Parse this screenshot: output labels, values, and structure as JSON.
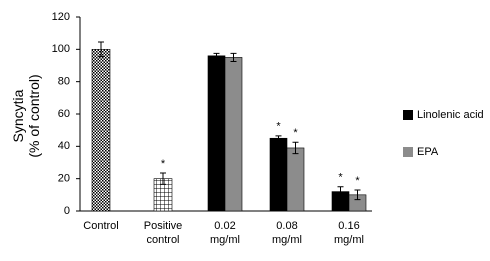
{
  "chart_data": {
    "type": "bar",
    "ylabel": "Syncytia\n(% of control)",
    "categories": [
      "Control",
      "Positive\ncontrol",
      "0.02\nmg/ml",
      "0.08\nmg/ml",
      "0.16\nmg/ml"
    ],
    "single_bars": {
      "values": [
        100,
        20,
        null,
        null,
        null
      ],
      "errors": [
        4.5,
        3.5,
        null,
        null,
        null
      ],
      "significance": [
        null,
        "*",
        null,
        null,
        null
      ]
    },
    "series": [
      {
        "name": "Linolenic acid",
        "color": "#000000",
        "values": [
          null,
          null,
          96,
          45,
          12
        ],
        "errors": [
          null,
          null,
          1.5,
          1.5,
          3
        ],
        "significance": [
          null,
          null,
          null,
          "*",
          "*"
        ]
      },
      {
        "name": "EPA",
        "color": "#8c8c8c",
        "values": [
          null,
          null,
          95,
          39,
          10
        ],
        "errors": [
          null,
          null,
          2.5,
          3.5,
          3
        ],
        "significance": [
          null,
          null,
          null,
          "*",
          "*"
        ]
      }
    ],
    "ylim": [
      0,
      120
    ],
    "yticks": [
      0,
      20,
      40,
      60,
      80,
      100,
      120
    ],
    "legend": "right",
    "grid": false
  }
}
